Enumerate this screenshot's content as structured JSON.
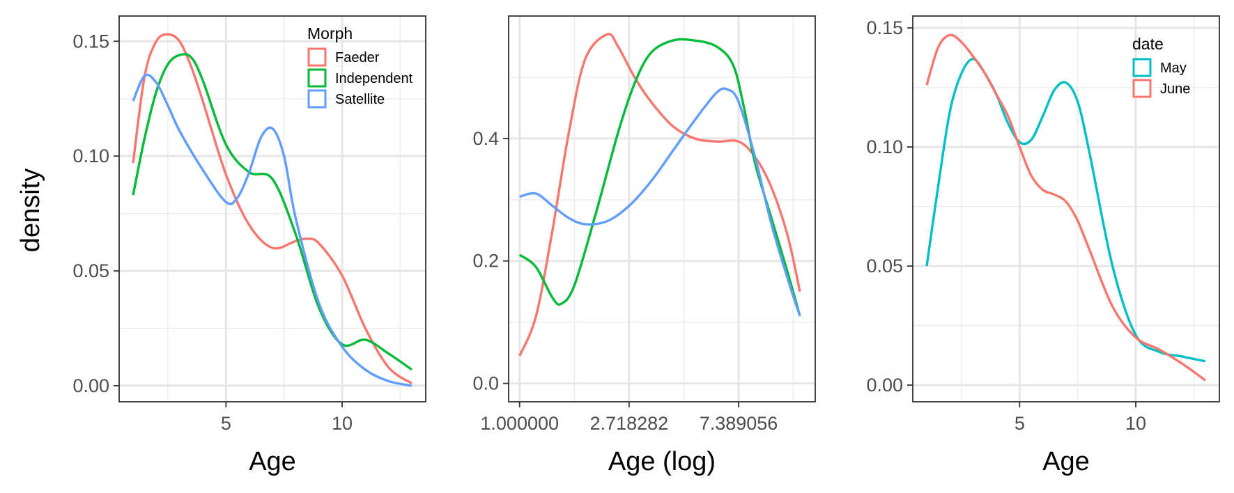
{
  "chart_data": [
    {
      "type": "line",
      "subtype": "density",
      "xlabel": "Age",
      "ylabel": "density",
      "xlim": [
        0.4,
        13.6
      ],
      "ylim": [
        -0.007,
        0.161
      ],
      "x_ticks": [
        5,
        10
      ],
      "x_tick_labels": [
        "5",
        "10"
      ],
      "y_ticks": [
        0,
        0.05,
        0.1,
        0.15
      ],
      "y_tick_labels": [
        "0.00",
        "0.05",
        "0.10",
        "0.15"
      ],
      "grid": true,
      "legend": {
        "title": "Morph",
        "position": "top-right"
      },
      "series": [
        {
          "name": "Faeder",
          "color": "#F8766D",
          "x": [
            1,
            1.5,
            2,
            2.5,
            3,
            3.5,
            4,
            5,
            6,
            7,
            8,
            8.5,
            9,
            10,
            11,
            12,
            13
          ],
          "y": [
            0.097,
            0.135,
            0.15,
            0.153,
            0.15,
            0.139,
            0.124,
            0.092,
            0.07,
            0.06,
            0.063,
            0.064,
            0.062,
            0.048,
            0.025,
            0.008,
            0.001
          ]
        },
        {
          "name": "Independent",
          "color": "#00BA38",
          "x": [
            1,
            1.5,
            2,
            2.5,
            3,
            3.5,
            4,
            5,
            6,
            7,
            8,
            9,
            10,
            11,
            12,
            13
          ],
          "y": [
            0.083,
            0.108,
            0.128,
            0.14,
            0.144,
            0.143,
            0.133,
            0.105,
            0.093,
            0.09,
            0.066,
            0.034,
            0.018,
            0.02,
            0.014,
            0.007
          ]
        },
        {
          "name": "Satellite",
          "color": "#619CFF",
          "x": [
            1,
            1.5,
            2,
            2.5,
            3,
            4,
            5,
            5.5,
            6,
            6.5,
            7,
            7.5,
            8,
            9,
            10,
            11,
            12,
            13
          ],
          "y": [
            0.124,
            0.135,
            0.132,
            0.122,
            0.111,
            0.094,
            0.08,
            0.082,
            0.093,
            0.108,
            0.112,
            0.1,
            0.073,
            0.036,
            0.017,
            0.007,
            0.002,
            0.0
          ]
        }
      ]
    },
    {
      "type": "line",
      "subtype": "density",
      "xlabel": "Age (log)",
      "ylabel": "",
      "xlim": [
        -0.1,
        2.7
      ],
      "ylim": [
        -0.03,
        0.6
      ],
      "x_ticks": [
        0,
        1,
        2
      ],
      "x_tick_labels": [
        "1.000000",
        "2.718282",
        "7.389056"
      ],
      "y_ticks": [
        0,
        0.2,
        0.4
      ],
      "y_tick_labels": [
        "0.0",
        "0.2",
        "0.4"
      ],
      "grid": true,
      "series": [
        {
          "name": "Faeder",
          "color": "#F8766D",
          "x": [
            0,
            0.15,
            0.3,
            0.45,
            0.6,
            0.8,
            0.9,
            1.05,
            1.2,
            1.4,
            1.6,
            1.8,
            2.0,
            2.15,
            2.3,
            2.45,
            2.56
          ],
          "y": [
            0.045,
            0.11,
            0.25,
            0.41,
            0.53,
            0.57,
            0.55,
            0.5,
            0.46,
            0.42,
            0.4,
            0.395,
            0.395,
            0.37,
            0.32,
            0.24,
            0.15
          ]
        },
        {
          "name": "Independent",
          "color": "#00BA38",
          "x": [
            0,
            0.15,
            0.3,
            0.38,
            0.5,
            0.7,
            0.9,
            1.05,
            1.2,
            1.4,
            1.6,
            1.8,
            1.95,
            2.05,
            2.15,
            2.3,
            2.45,
            2.56
          ],
          "y": [
            0.21,
            0.19,
            0.14,
            0.13,
            0.16,
            0.28,
            0.41,
            0.49,
            0.54,
            0.56,
            0.56,
            0.55,
            0.52,
            0.45,
            0.36,
            0.27,
            0.18,
            0.11
          ]
        },
        {
          "name": "Satellite",
          "color": "#619CFF",
          "x": [
            0,
            0.15,
            0.3,
            0.45,
            0.6,
            0.8,
            1.0,
            1.2,
            1.4,
            1.6,
            1.8,
            1.9,
            2.0,
            2.15,
            2.3,
            2.45,
            2.56
          ],
          "y": [
            0.305,
            0.31,
            0.29,
            0.27,
            0.26,
            0.265,
            0.29,
            0.33,
            0.38,
            0.43,
            0.475,
            0.48,
            0.46,
            0.37,
            0.26,
            0.17,
            0.11
          ]
        }
      ]
    },
    {
      "type": "line",
      "subtype": "density",
      "xlabel": "Age",
      "ylabel": "",
      "xlim": [
        0.4,
        13.6
      ],
      "ylim": [
        -0.007,
        0.155
      ],
      "x_ticks": [
        5,
        10
      ],
      "x_tick_labels": [
        "5",
        "10"
      ],
      "y_ticks": [
        0,
        0.05,
        0.1,
        0.15
      ],
      "y_tick_labels": [
        "0.00",
        "0.05",
        "0.10",
        "0.15"
      ],
      "grid": true,
      "legend": {
        "title": "date",
        "position": "top-right"
      },
      "series": [
        {
          "name": "May",
          "color": "#00BFC4",
          "x": [
            1,
            1.5,
            2,
            2.5,
            3,
            3.5,
            4,
            4.5,
            5,
            5.5,
            6,
            6.5,
            7,
            7.5,
            8,
            9,
            10,
            11,
            12,
            13
          ],
          "y": [
            0.05,
            0.084,
            0.115,
            0.131,
            0.137,
            0.131,
            0.122,
            0.11,
            0.102,
            0.103,
            0.113,
            0.124,
            0.127,
            0.119,
            0.098,
            0.05,
            0.021,
            0.014,
            0.012,
            0.01
          ]
        },
        {
          "name": "June",
          "color": "#F8766D",
          "x": [
            1,
            1.5,
            2,
            2.5,
            3,
            3.5,
            4,
            4.5,
            5,
            5.5,
            6,
            6.5,
            7,
            7.5,
            8,
            9,
            10,
            11,
            12,
            13
          ],
          "y": [
            0.126,
            0.142,
            0.147,
            0.144,
            0.138,
            0.131,
            0.122,
            0.113,
            0.1,
            0.088,
            0.082,
            0.08,
            0.077,
            0.069,
            0.057,
            0.033,
            0.02,
            0.015,
            0.009,
            0.002
          ]
        }
      ]
    }
  ]
}
